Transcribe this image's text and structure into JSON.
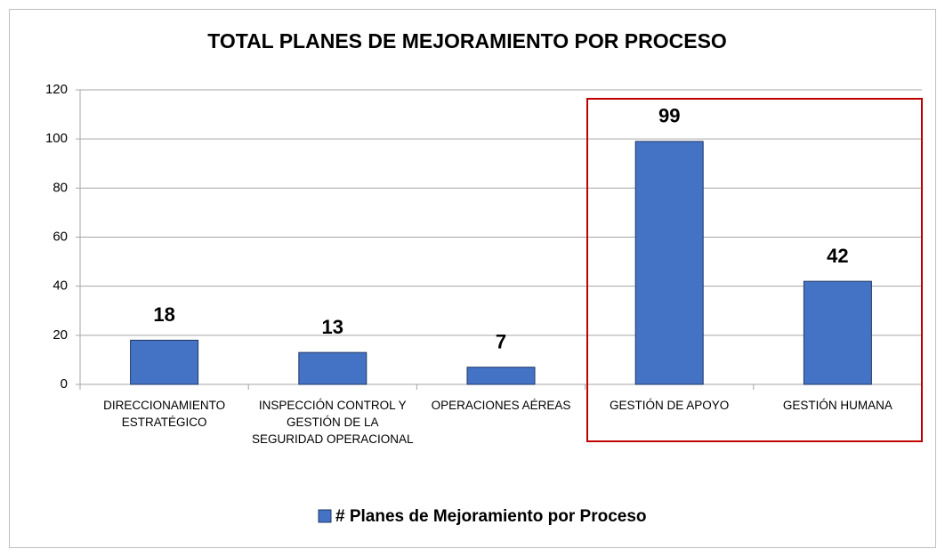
{
  "chart_data": {
    "type": "bar",
    "title": "TOTAL PLANES DE MEJORAMIENTO POR PROCESO",
    "categories": [
      "DIRECCIONAMIENTO ESTRATÉGICO",
      "INSPECCIÓN CONTROL Y GESTIÓN DE LA SEGURIDAD OPERACIONAL",
      "OPERACIONES AÉREAS",
      "GESTIÓN DE APOYO",
      "GESTIÓN HUMANA"
    ],
    "series": [
      {
        "name": "# Planes de Mejoramiento por Proceso",
        "color": "#4472c4",
        "values": [
          18,
          13,
          7,
          99,
          42
        ]
      }
    ],
    "ylim": [
      0,
      120
    ],
    "yticks": [
      0,
      20,
      40,
      60,
      80,
      100,
      120
    ],
    "grid": true,
    "legend": "bottom"
  }
}
